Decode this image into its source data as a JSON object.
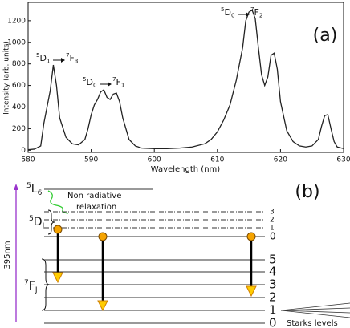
{
  "chart_data": {
    "type": "line",
    "panel_label": "(a)",
    "xlabel": "Wavelength (nm)",
    "ylabel": "Intensity (arb. units)",
    "color": "#222222",
    "x": [
      580,
      581,
      582,
      582.5,
      583,
      583.5,
      584,
      584.5,
      585,
      586,
      587,
      588,
      589,
      589.5,
      590,
      590.5,
      591,
      591.5,
      592,
      592.5,
      593,
      593.5,
      594,
      594.5,
      595,
      596,
      597,
      598,
      600,
      602,
      604,
      606,
      608,
      609,
      610,
      611,
      612,
      613,
      614,
      614.5,
      615,
      615.5,
      616,
      616.5,
      617,
      617.5,
      618,
      618.5,
      619,
      619.5,
      620,
      621,
      622,
      623,
      624,
      625,
      626,
      626.5,
      627,
      627.5,
      628,
      628.5,
      629,
      630
    ],
    "values": [
      5,
      10,
      40,
      250,
      400,
      550,
      790,
      600,
      300,
      120,
      60,
      50,
      100,
      200,
      330,
      420,
      470,
      540,
      560,
      490,
      470,
      520,
      530,
      450,
      300,
      100,
      40,
      20,
      15,
      15,
      20,
      30,
      60,
      100,
      170,
      280,
      420,
      650,
      950,
      1200,
      1280,
      1300,
      1220,
      950,
      700,
      600,
      680,
      880,
      900,
      750,
      450,
      180,
      80,
      40,
      30,
      40,
      100,
      220,
      320,
      330,
      200,
      80,
      30,
      15
    ],
    "xlim": [
      580,
      630
    ],
    "xticks": [
      580,
      590,
      600,
      610,
      620,
      630
    ],
    "ylim": [
      -20,
      1370
    ],
    "yticks": [
      0,
      200,
      400,
      600,
      800,
      1000,
      1200
    ],
    "annotations": [
      {
        "from": {
          "sup": "5",
          "base": "D",
          "sub": "1"
        },
        "to": {
          "sup": "7",
          "base": "F",
          "sub": "3"
        }
      },
      {
        "from": {
          "sup": "5",
          "base": "D",
          "sub": "0"
        },
        "to": {
          "sup": "7",
          "base": "F",
          "sub": "1"
        }
      },
      {
        "from": {
          "sup": "5",
          "base": "D",
          "sub": "0"
        },
        "to": {
          "sup": "7",
          "base": "F",
          "sub": "2"
        }
      }
    ]
  },
  "diagram": {
    "panel_label": "(b)",
    "excitation": "395nm",
    "levels": [
      {
        "sup": "5",
        "base": "L",
        "sub": "6"
      },
      {
        "sup": "5",
        "base": "D",
        "sub": "J"
      },
      {
        "sup": "7",
        "base": "F",
        "sub": "J"
      }
    ],
    "relaxation": [
      "Non radiative",
      "relaxation"
    ],
    "d_sublevels": [
      3,
      2,
      1,
      0
    ],
    "f_sublevels": [
      5,
      4,
      3,
      2,
      1,
      0
    ],
    "stark_label": "Starks levels"
  }
}
